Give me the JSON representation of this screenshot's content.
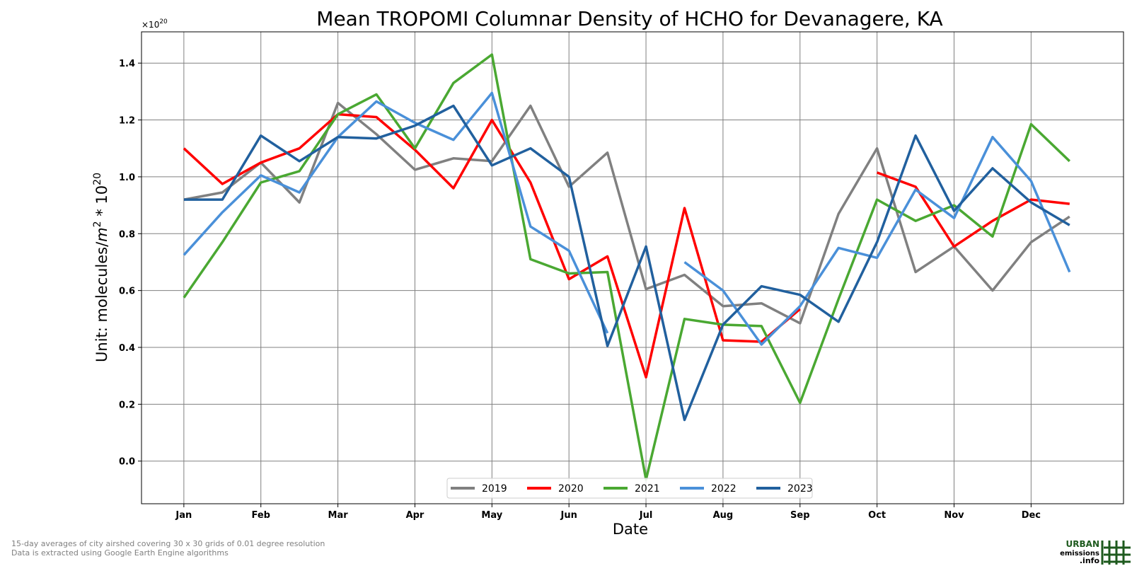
{
  "chart_data": {
    "type": "line",
    "title": "Mean TROPOMI Columnar Density of HCHO for Devanagere, KA",
    "xlabel": "Date",
    "ylabel": "Unit: molecules/m² * 10²⁰",
    "ylabel_parts": {
      "pre": "Unit: molecules/",
      "m": "m",
      "sup1": "2",
      "mid": " * 10",
      "sup2": "20"
    },
    "y_offset_base": "×10",
    "y_offset_exp": "20",
    "x_tick_labels": [
      "Jan",
      "Feb",
      "Mar",
      "Apr",
      "May",
      "Jun",
      "Jul",
      "Aug",
      "Sep",
      "Oct",
      "Nov",
      "Dec"
    ],
    "y_ticks": [
      0.0,
      0.2,
      0.4,
      0.6,
      0.8,
      1.0,
      1.2,
      1.4
    ],
    "y_tick_labels": [
      "0.0",
      "0.2",
      "0.4",
      "0.6",
      "0.8",
      "1.0",
      "1.2",
      "1.4"
    ],
    "xlim": [
      -0.55,
      12.2
    ],
    "ylim": [
      -0.15,
      1.51
    ],
    "x": [
      0,
      0.5,
      1,
      1.5,
      2,
      2.5,
      3,
      3.5,
      4,
      4.5,
      5,
      5.5,
      6,
      6.5,
      7,
      7.5,
      8,
      8.5,
      9,
      9.5,
      10,
      10.5,
      11,
      11.5
    ],
    "grid": true,
    "legend_position": "bottom-center",
    "series": [
      {
        "name": "2019",
        "color": "#808080",
        "values": [
          0.92,
          0.945,
          1.05,
          0.91,
          1.26,
          1.15,
          1.025,
          1.065,
          1.055,
          1.25,
          0.965,
          1.085,
          0.605,
          0.655,
          0.545,
          0.555,
          0.485,
          0.87,
          1.1,
          0.665,
          0.755,
          0.6,
          0.77,
          0.86
        ]
      },
      {
        "name": "2020",
        "color": "#ff0000",
        "values": [
          1.1,
          0.975,
          1.05,
          1.1,
          1.22,
          1.21,
          1.095,
          0.96,
          1.2,
          0.98,
          0.64,
          0.72,
          0.295,
          0.89,
          0.425,
          0.42,
          0.535,
          null,
          1.015,
          0.965,
          0.755,
          0.845,
          0.92,
          0.905
        ]
      },
      {
        "name": "2021",
        "color": "#4aa832",
        "values": [
          0.575,
          0.77,
          0.98,
          1.02,
          1.22,
          1.29,
          1.1,
          1.33,
          1.43,
          0.71,
          0.66,
          0.665,
          -0.065,
          0.5,
          0.48,
          0.475,
          0.205,
          0.57,
          0.92,
          0.845,
          0.9,
          0.79,
          1.185,
          1.055
        ]
      },
      {
        "name": "2022",
        "color": "#4a90d9",
        "values": [
          0.725,
          0.875,
          1.005,
          0.945,
          1.14,
          1.265,
          1.19,
          1.13,
          1.295,
          0.825,
          0.74,
          0.45,
          null,
          0.7,
          0.6,
          0.41,
          0.545,
          0.75,
          0.715,
          0.955,
          0.855,
          1.14,
          0.985,
          0.665
        ]
      },
      {
        "name": "2023",
        "color": "#21609e",
        "values": [
          0.92,
          0.92,
          1.145,
          1.055,
          1.14,
          1.135,
          1.18,
          1.25,
          1.04,
          1.1,
          1.0,
          0.405,
          0.755,
          0.145,
          0.48,
          0.615,
          0.585,
          0.49,
          0.77,
          1.145,
          0.88,
          1.03,
          0.91,
          0.83
        ]
      }
    ]
  },
  "footnote": {
    "line1": "15-day averages of city airshed covering 30 x 30 grids of 0.01 degree resolution",
    "line2": "Data is extracted using Google Earth Engine algorithms"
  },
  "logo": {
    "word1": "URBAN",
    "word2": "emissions",
    "word3": ".info",
    "color": "#1e5a1e"
  }
}
